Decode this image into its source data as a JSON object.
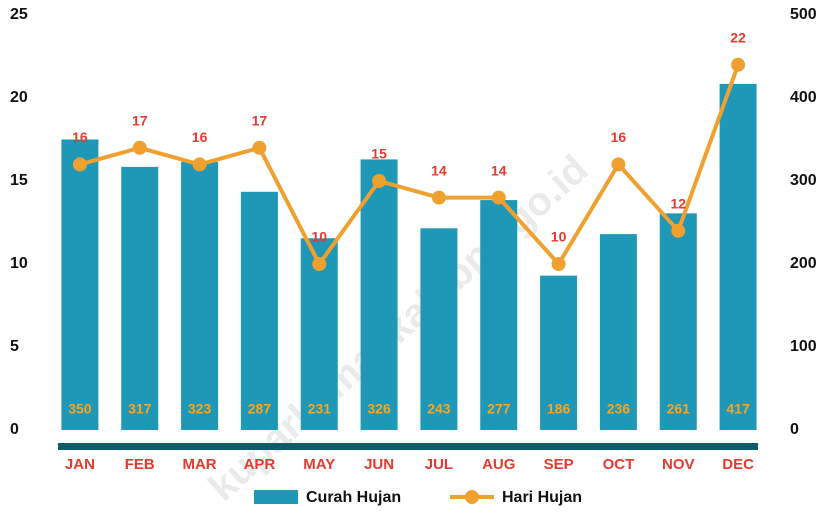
{
  "chart_data": {
    "type": "bar",
    "categories": [
      "JAN",
      "FEB",
      "MAR",
      "APR",
      "MAY",
      "JUN",
      "JUL",
      "AUG",
      "SEP",
      "OCT",
      "NOV",
      "DEC"
    ],
    "series": [
      {
        "name": "Curah Hujan",
        "type": "bar",
        "axis": "y2",
        "color": "#1f97b6",
        "values": [
          350,
          317,
          323,
          287,
          231,
          326,
          243,
          277,
          186,
          236,
          261,
          417
        ]
      },
      {
        "name": "Hari Hujan",
        "type": "line",
        "axis": "y",
        "color": "#f0a02e",
        "values": [
          16,
          17,
          16,
          17,
          10,
          15,
          14,
          14,
          10,
          16,
          12,
          22
        ]
      }
    ],
    "ylim": [
      0,
      25
    ],
    "yticks": [
      0,
      5,
      10,
      15,
      20,
      25
    ],
    "y2lim": [
      0,
      500
    ],
    "y2ticks": [
      0,
      100,
      200,
      300,
      400,
      500
    ],
    "legend": "bottom",
    "watermark": "kuparkamankab.bps.go.id"
  }
}
